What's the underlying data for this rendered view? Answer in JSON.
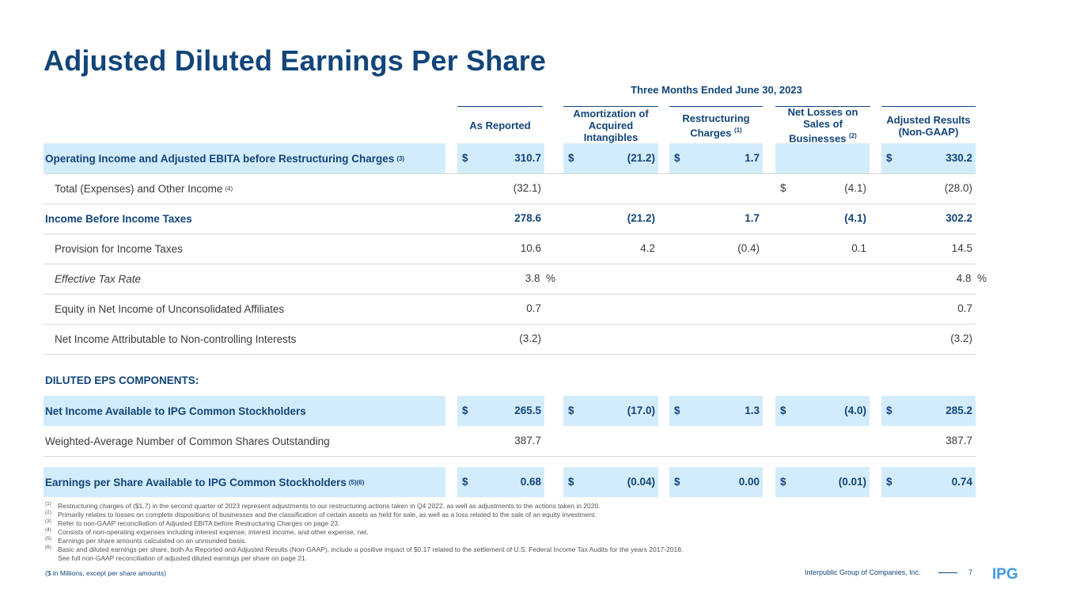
{
  "title": "Adjusted Diluted Earnings Per Share",
  "period": "Three Months Ended June 30, 2023",
  "columns": [
    {
      "text": "As Reported",
      "sup": ""
    },
    {
      "text": "Amortization of Acquired Intangibles",
      "sup": ""
    },
    {
      "text": "Restructuring Charges",
      "sup": "(1)"
    },
    {
      "text": "Net Losses on Sales of Businesses",
      "sup": "(2)"
    },
    {
      "text": "Adjusted Results (Non-GAAP)",
      "sup": ""
    }
  ],
  "rows": [
    {
      "label": "Operating Income and Adjusted EBITA before Restructuring Charges",
      "sup": "(3)",
      "cells": [
        {
          "d": "$",
          "v": "310.7"
        },
        {
          "d": "$",
          "v": "(21.2)"
        },
        {
          "d": "$",
          "v": "1.7"
        },
        {
          "d": "",
          "v": ""
        },
        {
          "d": "$",
          "v": "330.2"
        }
      ]
    },
    {
      "label": "Total (Expenses) and Other Income",
      "sup": "(4)",
      "cells": [
        {
          "d": "",
          "v": "(32.1)"
        },
        {
          "d": "",
          "v": ""
        },
        {
          "d": "",
          "v": ""
        },
        {
          "d": "$",
          "v": "(4.1)"
        },
        {
          "d": "",
          "v": "(28.0)"
        }
      ]
    },
    {
      "label": "Income Before Income Taxes",
      "sup": "",
      "cells": [
        {
          "d": "",
          "v": "278.6"
        },
        {
          "d": "",
          "v": "(21.2)"
        },
        {
          "d": "",
          "v": "1.7"
        },
        {
          "d": "",
          "v": "(4.1)"
        },
        {
          "d": "",
          "v": "302.2"
        }
      ]
    },
    {
      "label": "Provision for Income Taxes",
      "sup": "",
      "cells": [
        {
          "d": "",
          "v": "10.6"
        },
        {
          "d": "",
          "v": "4.2"
        },
        {
          "d": "",
          "v": "(0.4)"
        },
        {
          "d": "",
          "v": "0.1"
        },
        {
          "d": "",
          "v": "14.5"
        }
      ]
    },
    {
      "label": "Effective Tax Rate",
      "sup": "",
      "cells": [
        {
          "d": "",
          "v": "3.8  %"
        },
        {
          "d": "",
          "v": ""
        },
        {
          "d": "",
          "v": ""
        },
        {
          "d": "",
          "v": ""
        },
        {
          "d": "",
          "v": "4.8  %"
        }
      ]
    },
    {
      "label": "Equity in Net Income of Unconsolidated Affiliates",
      "sup": "",
      "cells": [
        {
          "d": "",
          "v": "0.7"
        },
        {
          "d": "",
          "v": ""
        },
        {
          "d": "",
          "v": ""
        },
        {
          "d": "",
          "v": ""
        },
        {
          "d": "",
          "v": "0.7"
        }
      ]
    },
    {
      "label": "Net Income Attributable to Non-controlling Interests",
      "sup": "",
      "cells": [
        {
          "d": "",
          "v": "(3.2)"
        },
        {
          "d": "",
          "v": ""
        },
        {
          "d": "",
          "v": ""
        },
        {
          "d": "",
          "v": ""
        },
        {
          "d": "",
          "v": "(3.2)"
        }
      ]
    },
    {
      "label": "Net Income Available to IPG Common Stockholders",
      "sup": "",
      "cells": [
        {
          "d": "$",
          "v": "265.5"
        },
        {
          "d": "$",
          "v": "(17.0)"
        },
        {
          "d": "$",
          "v": "1.3"
        },
        {
          "d": "$",
          "v": "(4.0)"
        },
        {
          "d": "$",
          "v": "285.2"
        }
      ]
    },
    {
      "label": "Weighted-Average Number of Common Shares Outstanding",
      "sup": "",
      "cells": [
        {
          "d": "",
          "v": "387.7"
        },
        {
          "d": "",
          "v": ""
        },
        {
          "d": "",
          "v": ""
        },
        {
          "d": "",
          "v": ""
        },
        {
          "d": "",
          "v": "387.7"
        }
      ]
    },
    {
      "label": "Earnings per Share Available to IPG Common Stockholders",
      "sup": "(5)(6)",
      "cells": [
        {
          "d": "$",
          "v": "0.68"
        },
        {
          "d": "$",
          "v": "(0.04)"
        },
        {
          "d": "$",
          "v": "0.00"
        },
        {
          "d": "$",
          "v": "(0.01)"
        },
        {
          "d": "$",
          "v": "0.74"
        }
      ]
    }
  ],
  "section_label": "DILUTED EPS COMPONENTS:",
  "footnotes": [
    {
      "n": "(1)",
      "text": "Restructuring charges of ($1.7) in the second quarter of 2023 represent adjustments to our restructuring actions taken in Q4 2022, as well as adjustments to the actions taken in 2020."
    },
    {
      "n": "(2)",
      "text": "Primarily relates to losses on complete dispositions of businesses and the classification of certain assets as held for sale, as well as a loss related to the sale of an equity investment."
    },
    {
      "n": "(3)",
      "text": "Refer to non-GAAP reconciliation of Adjusted EBITA before Restructuring Charges on page 23."
    },
    {
      "n": "(4)",
      "text": "Consists of non-operating expenses including interest expense, interest income, and other expense, net."
    },
    {
      "n": "(5)",
      "text": "Earnings per share amounts calculated on an unrounded basis."
    },
    {
      "n": "(6)",
      "text": "Basic and diluted earnings per share, both As Reported and Adjusted Results (Non-GAAP), include a positive impact of $0.17 related to the settlement of U.S. Federal Income Tax Audits for the years 2017-2018."
    },
    {
      "n": "",
      "text": "See full non-GAAP reconciliation of adjusted diluted earnings per share on page 21."
    }
  ],
  "footer": {
    "units": "($ in Millions, except per share amounts)",
    "company": "Interpublic Group of Companies, Inc.",
    "page": "7",
    "logo": "IPG"
  },
  "colors": {
    "brand": "#12457a",
    "shade": "#d3ecfb"
  }
}
